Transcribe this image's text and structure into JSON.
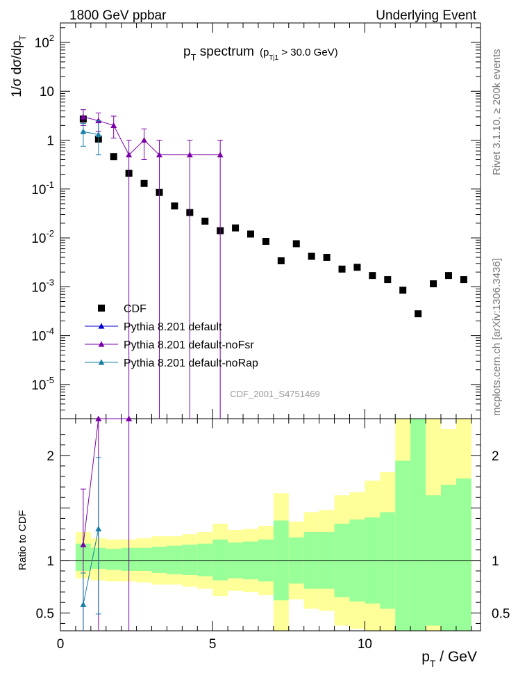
{
  "header": {
    "left": "1800 GeV ppbar",
    "right": "Underlying Event"
  },
  "side_labels": {
    "upper": "Rivet 3.1.10, ≥ 200k events",
    "lower": "mcplots.cern.ch [arXiv:1306.3436]"
  },
  "titles": {
    "main": "p",
    "main_sub": "T",
    "main_rest": " spectrum",
    "cond_open": "(p",
    "cond_sub": "Tj1",
    "cond_rest": " > 30.0 GeV)",
    "watermark": "CDF_2001_S4751469",
    "ylabel_top": "1/σ dσ/dp",
    "ylabel_top_sub": "T",
    "ylabel_ratio": "Ratio to CDF",
    "xlabel": "p",
    "xlabel_sub": "T",
    "xlabel_rest": " / GeV"
  },
  "legend": [
    {
      "label": "CDF",
      "marker": "square",
      "color": "#000000"
    },
    {
      "label": "Pythia 8.201 default",
      "marker": "triangle",
      "color": "#0000cc"
    },
    {
      "label": "Pythia 8.201 default-noFsr",
      "marker": "triangle",
      "color": "#7a00a8"
    },
    {
      "label": "Pythia 8.201 default-noRap",
      "marker": "triangle",
      "color": "#1a7fa6"
    }
  ],
  "chart_data": {
    "type": "scatter",
    "xlim": [
      0,
      13.8
    ],
    "ylim_main": [
      2e-06,
      250
    ],
    "ylog_main": true,
    "ylim_ratio": [
      0.33,
      2.35
    ],
    "x_ticks": [
      0,
      5,
      10
    ],
    "y_ticks_main_labels": [
      "10^2",
      "10",
      "1",
      "10^-1",
      "10^-2",
      "10^-3",
      "10^-4",
      "10^-5"
    ],
    "y_ticks_ratio": [
      0.5,
      1,
      2
    ],
    "series": [
      {
        "name": "CDF",
        "color": "#000000",
        "x": [
          0.75,
          1.25,
          1.75,
          2.25,
          2.75,
          3.25,
          3.75,
          4.25,
          4.75,
          5.25,
          5.75,
          6.25,
          6.75,
          7.25,
          7.75,
          8.25,
          8.75,
          9.25,
          9.75,
          10.25,
          10.75,
          11.25,
          11.75,
          12.25,
          12.75,
          13.25
        ],
        "y": [
          2.7,
          1.05,
          0.46,
          0.21,
          0.13,
          0.085,
          0.045,
          0.033,
          0.022,
          0.014,
          0.016,
          0.012,
          0.0085,
          0.0034,
          0.0076,
          0.0042,
          0.004,
          0.0023,
          0.0025,
          0.0017,
          0.0014,
          0.00085,
          0.00028,
          0.00115,
          0.0017,
          0.0014
        ]
      },
      {
        "name": "Pythia 8.201 default-noFsr",
        "color": "#7a00a8",
        "x": [
          0.75,
          1.25,
          1.75,
          2.25,
          2.75,
          3.25,
          4.25,
          5.25
        ],
        "y": [
          3.0,
          2.5,
          2.0,
          0.5,
          1.0,
          0.5,
          0.5,
          0.5
        ],
        "yerr_up": [
          4.2,
          3.6,
          3.1,
          1.0,
          1.7,
          1.0,
          1.0,
          1.0
        ],
        "yerr_down": [
          2.0,
          1.5,
          1.1,
          0.0,
          0.4,
          0.0,
          0.0,
          0.0
        ]
      },
      {
        "name": "Pythia 8.201 default-noRap",
        "color": "#1a7fa6",
        "x": [
          0.75,
          1.25
        ],
        "y": [
          1.5,
          1.3
        ],
        "yerr_up": [
          2.2,
          2.5
        ],
        "yerr_down": [
          0.75,
          0.5
        ]
      }
    ],
    "ratio_series": [
      {
        "name": "Pythia 8.201 default-noFsr",
        "color": "#7a00a8",
        "x": [
          0.75,
          1.25,
          2.25
        ],
        "y": [
          1.15,
          2.35,
          2.35
        ],
        "yerr_up": [
          1.68,
          2.35,
          2.35
        ],
        "yerr_down": [
          0.33,
          0.33,
          0.33
        ]
      },
      {
        "name": "Pythia 8.201 default-noRap",
        "color": "#1a7fa6",
        "x": [
          0.75,
          1.25
        ],
        "y": [
          0.58,
          1.3
        ],
        "yerr_up": [
          0.88,
          1.98
        ],
        "yerr_down": [
          0.33,
          0.49
        ]
      }
    ],
    "bands": {
      "bin_edges": [
        0.5,
        1.0,
        1.5,
        2.0,
        2.5,
        3.0,
        3.5,
        4.0,
        4.5,
        5.0,
        5.5,
        6.0,
        6.5,
        7.0,
        7.5,
        8.0,
        8.5,
        9.0,
        9.5,
        10.0,
        10.5,
        11.0,
        11.5,
        12.0,
        12.5,
        13.0,
        13.5
      ],
      "yellow_up": [
        1.27,
        1.21,
        1.2,
        1.2,
        1.21,
        1.23,
        1.23,
        1.25,
        1.27,
        1.35,
        1.29,
        1.3,
        1.33,
        1.64,
        1.37,
        1.46,
        1.48,
        1.62,
        1.65,
        1.76,
        1.84,
        2.38,
        2.38,
        2.38,
        2.25,
        2.38
      ],
      "yellow_down": [
        0.83,
        0.81,
        0.8,
        0.8,
        0.79,
        0.77,
        0.77,
        0.75,
        0.73,
        0.66,
        0.71,
        0.7,
        0.67,
        0.33,
        0.63,
        0.54,
        0.52,
        0.38,
        0.35,
        0.33,
        0.33,
        0.33,
        0.33,
        0.33,
        0.33,
        0.33
      ],
      "green_up": [
        1.16,
        1.12,
        1.11,
        1.12,
        1.12,
        1.13,
        1.14,
        1.15,
        1.16,
        1.2,
        1.17,
        1.18,
        1.2,
        1.38,
        1.22,
        1.27,
        1.27,
        1.35,
        1.39,
        1.41,
        1.46,
        1.95,
        2.38,
        1.62,
        1.72,
        1.78
      ],
      "green_down": [
        0.9,
        0.92,
        0.91,
        0.9,
        0.9,
        0.88,
        0.87,
        0.86,
        0.85,
        0.81,
        0.83,
        0.82,
        0.8,
        0.62,
        0.78,
        0.73,
        0.73,
        0.65,
        0.61,
        0.59,
        0.54,
        0.33,
        0.33,
        0.38,
        0.33,
        0.33
      ],
      "yellow_color": "#ffff99",
      "green_color": "#99ff99"
    }
  }
}
